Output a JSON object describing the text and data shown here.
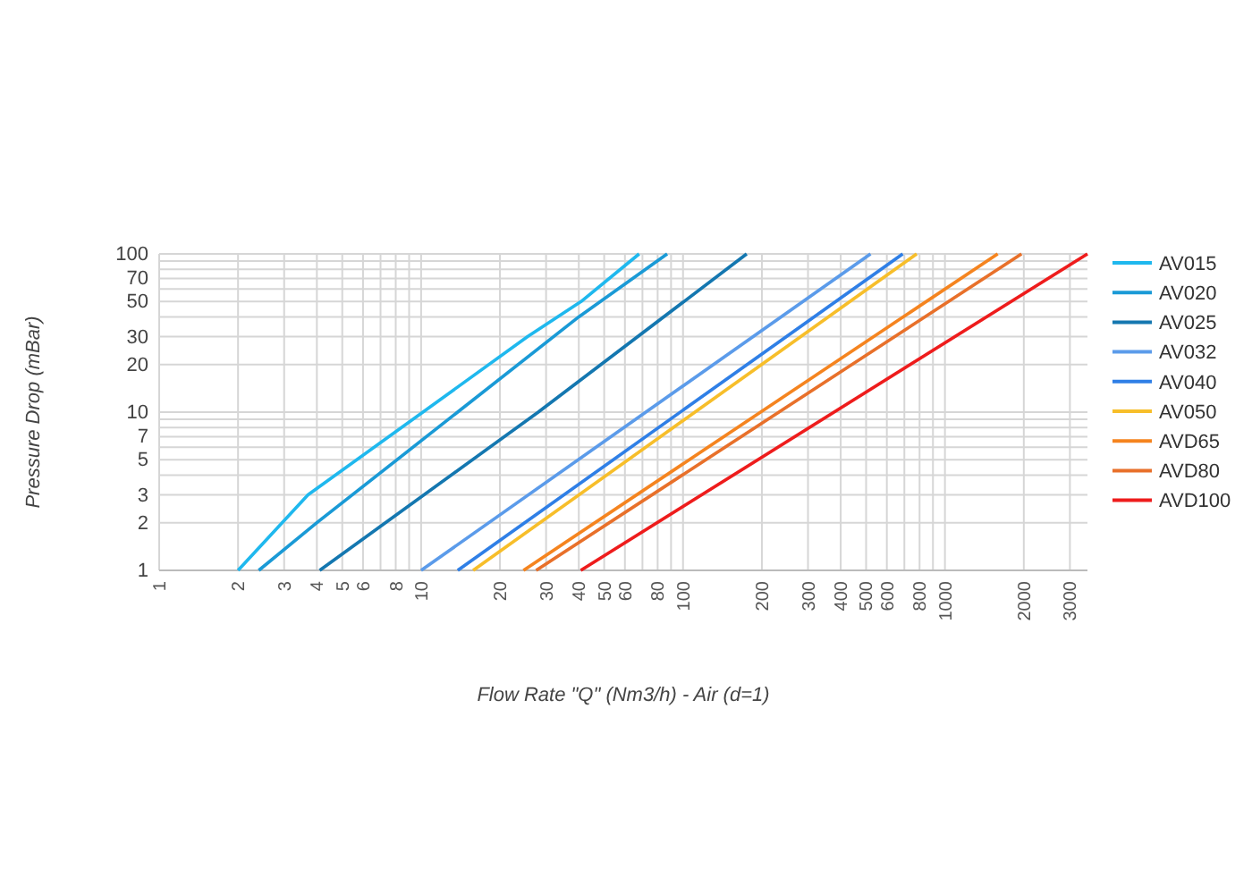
{
  "chart_data": {
    "type": "line",
    "xlabel": "Flow Rate \"Q\" (Nm3/h) - Air (d=1)",
    "ylabel": "Pressure Drop (mBar)",
    "log": "xy",
    "grid": true,
    "legend": "right",
    "marker": "none",
    "line_style": "solid",
    "xlim": [
      1,
      3500
    ],
    "ylim": [
      1,
      100
    ],
    "xticks": [
      1,
      2,
      3,
      4,
      5,
      6,
      {
        "value": 7,
        "label": null
      },
      8,
      {
        "value": 9,
        "label": null
      },
      10,
      20,
      30,
      40,
      50,
      60,
      {
        "value": 70,
        "label": null
      },
      80,
      {
        "value": 90,
        "label": null
      },
      100,
      200,
      300,
      400,
      500,
      600,
      {
        "value": 700,
        "label": null
      },
      800,
      {
        "value": 900,
        "label": null
      },
      1000,
      2000,
      3000
    ],
    "yticks": [
      1,
      2,
      3,
      {
        "value": 4,
        "label": null
      },
      5,
      {
        "value": 6,
        "label": null
      },
      7,
      {
        "value": 8,
        "label": null
      },
      {
        "value": 9,
        "label": null
      },
      10,
      20,
      30,
      {
        "value": 40,
        "label": null
      },
      50,
      {
        "value": 60,
        "label": null
      },
      70,
      {
        "value": 80,
        "label": null
      },
      {
        "value": 90,
        "label": null
      },
      100
    ],
    "series": [
      {
        "name": "AV015",
        "color": "#1fb8ee",
        "x": [
          2,
          3.7,
          25.5,
          40.8,
          68
        ],
        "values": [
          1,
          3,
          30,
          50,
          100
        ]
      },
      {
        "name": "AV020",
        "color": "#1a9ad6",
        "x": [
          2.4,
          4,
          40,
          87
        ],
        "values": [
          1,
          2,
          40,
          100
        ]
      },
      {
        "name": "AV025",
        "color": "#1477b0",
        "x": [
          4.1,
          28,
          175
        ],
        "values": [
          1,
          10,
          100
        ]
      },
      {
        "name": "AV032",
        "color": "#5b9bea",
        "x": [
          10,
          520
        ],
        "values": [
          1,
          100
        ]
      },
      {
        "name": "AV040",
        "color": "#2f7fe6",
        "x": [
          13.8,
          690
        ],
        "values": [
          1,
          100
        ]
      },
      {
        "name": "AV050",
        "color": "#f7be2a",
        "x": [
          15.8,
          780
        ],
        "values": [
          1,
          100
        ]
      },
      {
        "name": "AVD65",
        "color": "#f5841f",
        "x": [
          24.6,
          1590
        ],
        "values": [
          1,
          100
        ]
      },
      {
        "name": "AVD80",
        "color": "#e8702a",
        "x": [
          27.5,
          1960
        ],
        "values": [
          1,
          100
        ]
      },
      {
        "name": "AVD100",
        "color": "#ee1c1c",
        "x": [
          40.7,
          3500
        ],
        "values": [
          1,
          100
        ]
      }
    ]
  }
}
